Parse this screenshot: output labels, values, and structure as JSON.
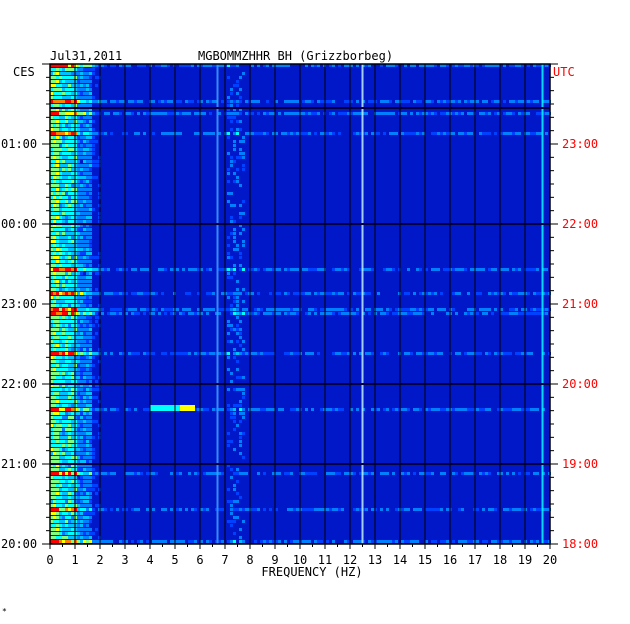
{
  "header": {
    "date": "Jul31,2011",
    "station": "MGBOMMZHHR BH (Grizzborbeg)"
  },
  "left_axis": {
    "zone_label": "CES",
    "ticks": [
      "01:00",
      "00:00",
      "23:00",
      "22:00",
      "21:00",
      "20:00"
    ]
  },
  "right_axis": {
    "zone_label": "UTC",
    "ticks": [
      "23:00",
      "22:00",
      "21:00",
      "20:00",
      "19:00",
      "18:00"
    ],
    "color": "#ff0000"
  },
  "footer_mark": "*",
  "chart_data": {
    "type": "heatmap",
    "title": "",
    "xlabel": "FREQUENCY (HZ)",
    "x_ticks": [
      0,
      1,
      2,
      3,
      4,
      5,
      6,
      7,
      8,
      9,
      10,
      11,
      12,
      13,
      14,
      15,
      16,
      17,
      18,
      19,
      20
    ],
    "xlim": [
      0,
      20
    ],
    "y_range_utc": [
      "18:00",
      "24:00"
    ],
    "grid": true,
    "colormap": [
      "#000080",
      "#0000ff",
      "#0040ff",
      "#0080ff",
      "#00c0ff",
      "#00ffff",
      "#80ff80",
      "#ffff00",
      "#ff8000",
      "#ff0000"
    ],
    "features": {
      "strong_low_freq_band_hz": [
        0.1,
        1.0
      ],
      "persistent_lines_hz": [
        6.7,
        12.5,
        19.7
      ],
      "intermittent_band_hz": [
        7.0,
        7.8
      ],
      "event_hz": [
        4.0,
        5.8
      ],
      "event_time_utc": "19:42"
    }
  }
}
